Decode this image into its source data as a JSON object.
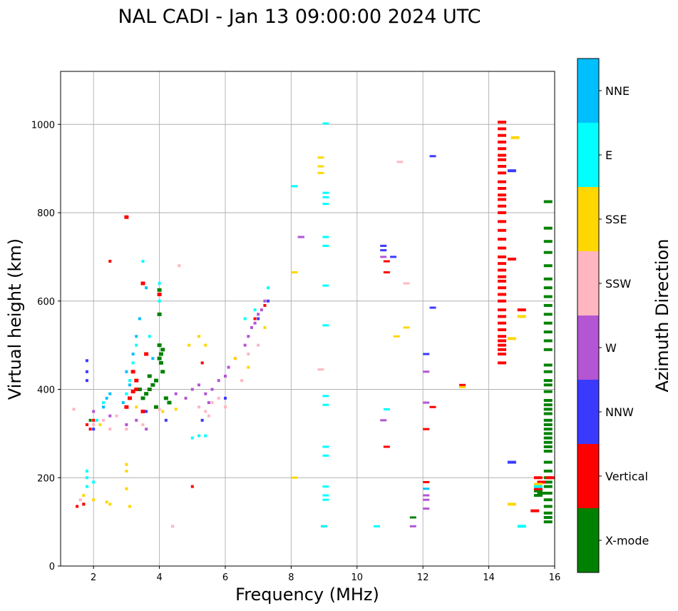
{
  "chart_data": {
    "type": "scatter",
    "title": "NAL CADI - Jan 13 09:00:00 2024 UTC",
    "xlabel": "Frequency (MHz)",
    "ylabel": "Virtual height (km)",
    "xlim": [
      1,
      16
    ],
    "ylim": [
      0,
      1120
    ],
    "xticks": [
      2,
      4,
      6,
      8,
      10,
      12,
      14,
      16
    ],
    "yticks": [
      0,
      200,
      400,
      600,
      800,
      1000
    ],
    "grid": true,
    "colorbar": {
      "label": "Azimuth Direction",
      "position": "right",
      "categories": [
        "X-mode",
        "Vertical",
        "NNW",
        "W",
        "SSW",
        "SSE",
        "E",
        "NNE"
      ],
      "colors": [
        "#008000",
        "#ff0000",
        "#3a3aff",
        "#b455d4",
        "#ffb6c1",
        "#ffd700",
        "#00ffff",
        "#00bfff"
      ]
    },
    "series": [
      {
        "name": "X-mode",
        "points": [
          [
            3.6,
            390
          ],
          [
            3.7,
            400
          ],
          [
            3.8,
            410
          ],
          [
            3.9,
            420
          ],
          [
            3.7,
            430
          ],
          [
            3.5,
            380
          ],
          [
            4.0,
            470
          ],
          [
            4.05,
            480
          ],
          [
            4.1,
            490
          ],
          [
            4.0,
            500
          ],
          [
            4.05,
            460
          ],
          [
            4.0,
            625
          ],
          [
            4.0,
            570
          ],
          [
            4.1,
            440
          ],
          [
            4.2,
            380
          ],
          [
            4.3,
            370
          ],
          [
            3.9,
            360
          ],
          [
            3.4,
            400
          ],
          [
            15.5,
            160
          ],
          [
            15.5,
            170
          ],
          [
            15.6,
            165
          ],
          [
            15.8,
            100
          ],
          [
            15.8,
            110
          ],
          [
            15.8,
            120
          ],
          [
            15.8,
            135
          ],
          [
            15.8,
            150
          ],
          [
            15.8,
            165
          ],
          [
            15.8,
            180
          ],
          [
            15.8,
            190
          ],
          [
            15.8,
            200
          ],
          [
            15.8,
            215
          ],
          [
            15.8,
            235
          ],
          [
            15.8,
            260
          ],
          [
            15.8,
            270
          ],
          [
            15.8,
            280
          ],
          [
            15.8,
            290
          ],
          [
            15.8,
            300
          ],
          [
            15.8,
            310
          ],
          [
            15.8,
            320
          ],
          [
            15.8,
            330
          ],
          [
            15.8,
            345
          ],
          [
            15.8,
            355
          ],
          [
            15.8,
            365
          ],
          [
            15.8,
            375
          ],
          [
            15.8,
            395
          ],
          [
            15.8,
            410
          ],
          [
            15.8,
            420
          ],
          [
            15.8,
            440
          ],
          [
            15.8,
            455
          ],
          [
            15.8,
            490
          ],
          [
            15.8,
            510
          ],
          [
            15.8,
            530
          ],
          [
            15.8,
            550
          ],
          [
            15.8,
            570
          ],
          [
            15.8,
            590
          ],
          [
            15.8,
            610
          ],
          [
            15.8,
            630
          ],
          [
            15.8,
            650
          ],
          [
            15.8,
            680
          ],
          [
            15.8,
            710
          ],
          [
            15.8,
            735
          ],
          [
            15.8,
            765
          ],
          [
            15.8,
            825
          ],
          [
            11.7,
            110
          ],
          [
            1.7,
            140
          ],
          [
            1.9,
            330
          ]
        ]
      },
      {
        "name": "Vertical",
        "points": [
          [
            1.5,
            135
          ],
          [
            1.7,
            140
          ],
          [
            1.8,
            320
          ],
          [
            1.9,
            310
          ],
          [
            2.0,
            330
          ],
          [
            2.5,
            690
          ],
          [
            3.0,
            790
          ],
          [
            3.0,
            360
          ],
          [
            3.1,
            380
          ],
          [
            3.2,
            395
          ],
          [
            3.2,
            440
          ],
          [
            3.3,
            420
          ],
          [
            3.3,
            400
          ],
          [
            3.5,
            640
          ],
          [
            3.5,
            350
          ],
          [
            3.6,
            480
          ],
          [
            4.0,
            615
          ],
          [
            5.0,
            180
          ],
          [
            5.3,
            460
          ],
          [
            6.9,
            560
          ],
          [
            7.2,
            590
          ],
          [
            9.0,
            90
          ],
          [
            10.9,
            270
          ],
          [
            10.9,
            665
          ],
          [
            10.9,
            690
          ],
          [
            12.1,
            190
          ],
          [
            12.1,
            310
          ],
          [
            12.3,
            360
          ],
          [
            13.2,
            410
          ],
          [
            15.0,
            580
          ],
          [
            14.4,
            460
          ],
          [
            14.4,
            480
          ],
          [
            14.4,
            490
          ],
          [
            14.4,
            500
          ],
          [
            14.4,
            510
          ],
          [
            14.4,
            520
          ],
          [
            14.4,
            535
          ],
          [
            14.4,
            550
          ],
          [
            14.4,
            565
          ],
          [
            14.4,
            580
          ],
          [
            14.4,
            600
          ],
          [
            14.4,
            615
          ],
          [
            14.4,
            630
          ],
          [
            14.4,
            645
          ],
          [
            14.4,
            655
          ],
          [
            14.4,
            670
          ],
          [
            14.4,
            685
          ],
          [
            14.4,
            700
          ],
          [
            14.4,
            720
          ],
          [
            14.4,
            740
          ],
          [
            14.4,
            760
          ],
          [
            14.4,
            780
          ],
          [
            14.4,
            800
          ],
          [
            14.4,
            815
          ],
          [
            14.4,
            830
          ],
          [
            14.4,
            840
          ],
          [
            14.4,
            855
          ],
          [
            14.4,
            870
          ],
          [
            14.4,
            890
          ],
          [
            14.4,
            905
          ],
          [
            14.4,
            920
          ],
          [
            14.4,
            930
          ],
          [
            14.4,
            945
          ],
          [
            14.4,
            960
          ],
          [
            14.4,
            975
          ],
          [
            14.4,
            990
          ],
          [
            14.4,
            1005
          ],
          [
            14.7,
            695
          ],
          [
            15.4,
            125
          ],
          [
            15.5,
            175
          ],
          [
            15.5,
            200
          ],
          [
            15.6,
            190
          ],
          [
            16.0,
            200
          ]
        ]
      },
      {
        "name": "NNW",
        "points": [
          [
            1.8,
            420
          ],
          [
            1.8,
            440
          ],
          [
            1.8,
            465
          ],
          [
            2.0,
            310
          ],
          [
            3.6,
            350
          ],
          [
            4.2,
            330
          ],
          [
            5.3,
            330
          ],
          [
            6.0,
            380
          ],
          [
            7.0,
            560
          ],
          [
            7.3,
            600
          ],
          [
            8.3,
            745
          ],
          [
            10.8,
            725
          ],
          [
            10.8,
            715
          ],
          [
            11.1,
            700
          ],
          [
            12.1,
            480
          ],
          [
            12.3,
            585
          ],
          [
            12.3,
            928
          ],
          [
            14.7,
            235
          ],
          [
            14.7,
            895
          ]
        ]
      },
      {
        "name": "W",
        "points": [
          [
            2.0,
            350
          ],
          [
            2.5,
            340
          ],
          [
            3.0,
            320
          ],
          [
            3.3,
            330
          ],
          [
            3.6,
            310
          ],
          [
            4.5,
            390
          ],
          [
            4.8,
            380
          ],
          [
            5.0,
            400
          ],
          [
            5.2,
            410
          ],
          [
            5.4,
            390
          ],
          [
            5.5,
            370
          ],
          [
            5.6,
            400
          ],
          [
            5.8,
            420
          ],
          [
            6.0,
            430
          ],
          [
            6.1,
            450
          ],
          [
            6.3,
            470
          ],
          [
            6.6,
            500
          ],
          [
            6.7,
            520
          ],
          [
            6.8,
            540
          ],
          [
            6.9,
            550
          ],
          [
            7.0,
            570
          ],
          [
            7.1,
            580
          ],
          [
            7.2,
            600
          ],
          [
            8.3,
            745
          ],
          [
            10.8,
            330
          ],
          [
            10.8,
            700
          ],
          [
            12.1,
            370
          ],
          [
            12.1,
            440
          ],
          [
            12.1,
            130
          ],
          [
            12.1,
            150
          ],
          [
            12.1,
            160
          ],
          [
            11.7,
            90
          ]
        ]
      },
      {
        "name": "SSW",
        "points": [
          [
            1.4,
            355
          ],
          [
            1.6,
            150
          ],
          [
            2.0,
            320
          ],
          [
            2.3,
            330
          ],
          [
            2.5,
            310
          ],
          [
            2.7,
            340
          ],
          [
            3.0,
            310
          ],
          [
            3.5,
            320
          ],
          [
            4.0,
            355
          ],
          [
            4.4,
            90
          ],
          [
            4.6,
            680
          ],
          [
            5.2,
            360
          ],
          [
            5.4,
            350
          ],
          [
            5.5,
            340
          ],
          [
            5.6,
            370
          ],
          [
            5.8,
            380
          ],
          [
            6.0,
            360
          ],
          [
            6.5,
            420
          ],
          [
            6.7,
            480
          ],
          [
            7.0,
            500
          ],
          [
            8.9,
            445
          ],
          [
            11.5,
            640
          ],
          [
            11.3,
            915
          ]
        ]
      },
      {
        "name": "SSE",
        "points": [
          [
            1.7,
            160
          ],
          [
            2.0,
            150
          ],
          [
            2.2,
            320
          ],
          [
            2.4,
            145
          ],
          [
            2.5,
            140
          ],
          [
            3.0,
            175
          ],
          [
            3.0,
            230
          ],
          [
            3.0,
            215
          ],
          [
            3.1,
            135
          ],
          [
            3.3,
            360
          ],
          [
            4.1,
            350
          ],
          [
            4.5,
            355
          ],
          [
            4.9,
            500
          ],
          [
            5.2,
            520
          ],
          [
            5.4,
            500
          ],
          [
            6.3,
            470
          ],
          [
            6.7,
            450
          ],
          [
            7.2,
            540
          ],
          [
            8.1,
            200
          ],
          [
            8.1,
            665
          ],
          [
            8.9,
            925
          ],
          [
            8.9,
            905
          ],
          [
            8.9,
            890
          ],
          [
            11.2,
            520
          ],
          [
            11.5,
            540
          ],
          [
            13.2,
            405
          ],
          [
            14.7,
            140
          ],
          [
            14.7,
            515
          ],
          [
            14.8,
            970
          ],
          [
            15.0,
            565
          ],
          [
            15.5,
            185
          ]
        ]
      },
      {
        "name": "E",
        "points": [
          [
            1.8,
            180
          ],
          [
            1.8,
            200
          ],
          [
            1.8,
            215
          ],
          [
            2.0,
            190
          ],
          [
            2.1,
            330
          ],
          [
            2.3,
            370
          ],
          [
            3.0,
            390
          ],
          [
            3.1,
            420
          ],
          [
            3.2,
            460
          ],
          [
            3.3,
            500
          ],
          [
            3.5,
            690
          ],
          [
            3.7,
            520
          ],
          [
            4.0,
            640
          ],
          [
            4.0,
            600
          ],
          [
            5.0,
            290
          ],
          [
            5.2,
            295
          ],
          [
            5.4,
            295
          ],
          [
            6.6,
            560
          ],
          [
            6.9,
            580
          ],
          [
            7.3,
            630
          ],
          [
            8.1,
            860
          ],
          [
            9.0,
            90
          ],
          [
            9.05,
            150
          ],
          [
            9.05,
            160
          ],
          [
            9.05,
            180
          ],
          [
            9.05,
            250
          ],
          [
            9.05,
            270
          ],
          [
            9.05,
            365
          ],
          [
            9.05,
            385
          ],
          [
            9.05,
            545
          ],
          [
            9.05,
            635
          ],
          [
            9.05,
            725
          ],
          [
            9.05,
            745
          ],
          [
            9.05,
            820
          ],
          [
            9.05,
            835
          ],
          [
            9.05,
            845
          ],
          [
            9.05,
            1002
          ],
          [
            10.6,
            90
          ],
          [
            10.9,
            355
          ],
          [
            15.0,
            90
          ],
          [
            15.5,
            180
          ]
        ]
      },
      {
        "name": "NNE",
        "points": [
          [
            2.3,
            360
          ],
          [
            2.4,
            380
          ],
          [
            2.5,
            390
          ],
          [
            3.0,
            440
          ],
          [
            3.2,
            480
          ],
          [
            3.3,
            520
          ],
          [
            3.4,
            560
          ],
          [
            3.6,
            630
          ],
          [
            3.8,
            470
          ],
          [
            12.1,
            175
          ],
          [
            2.9,
            370
          ],
          [
            3.1,
            410
          ]
        ]
      }
    ]
  }
}
